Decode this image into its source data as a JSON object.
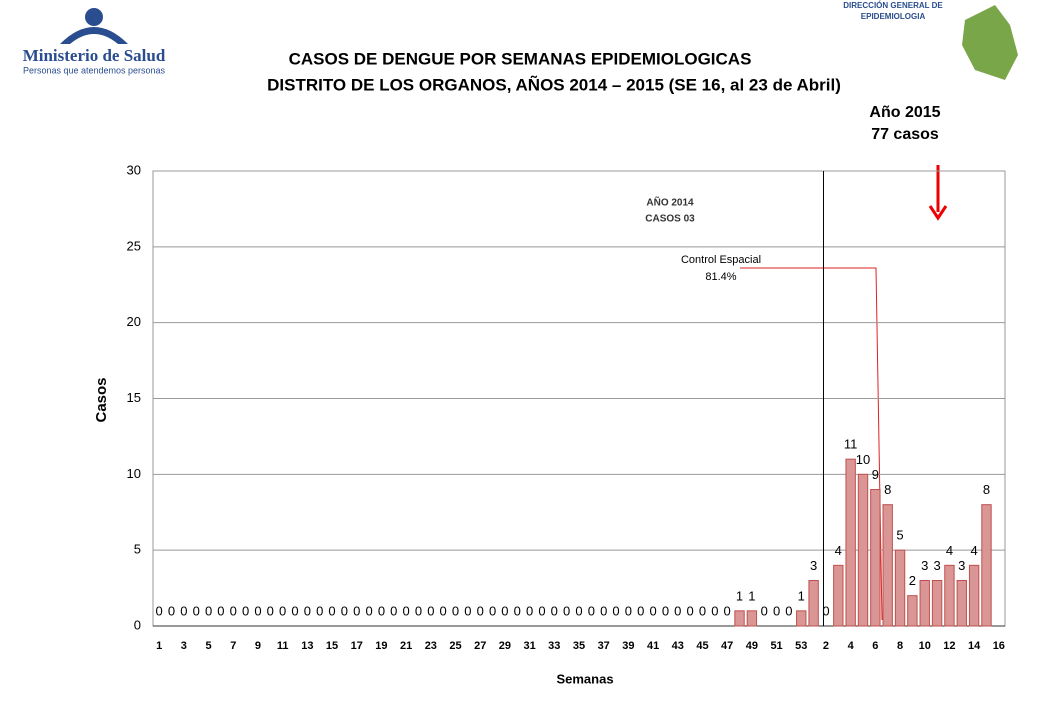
{
  "chart_data": {
    "type": "bar",
    "title": "CASOS DE DENGUE POR SEMANAS EPIDEMIOLOGICAS",
    "subtitle": "DISTRITO DE LOS ORGANOS, AÑOS 2014 – 2015 (SE 16, al 23 de Abril)",
    "x_label": "Semanas",
    "y_label": "Casos",
    "header": {
      "org": "Ministerio de Salud",
      "motto": "Personas que atendemos personas",
      "agency": [
        "DIRECCIÓN GENERAL DE",
        "EPIDEMIOLOGIA"
      ]
    },
    "annotations": {
      "year2014": [
        "AÑO 2014",
        "CASOS 03"
      ],
      "control": [
        "Control Espacial",
        "81.4%"
      ],
      "year2015": [
        "Año 2015",
        "77 casos"
      ]
    },
    "categories": [
      "1",
      null,
      "3",
      null,
      "5",
      null,
      "7",
      null,
      "9",
      null,
      "11",
      null,
      "13",
      null,
      "15",
      null,
      "17",
      null,
      "19",
      null,
      "21",
      null,
      "23",
      null,
      "25",
      null,
      "27",
      null,
      "29",
      null,
      "31",
      null,
      "33",
      null,
      "35",
      null,
      "37",
      null,
      "39",
      null,
      "41",
      null,
      "43",
      null,
      "45",
      null,
      "47",
      null,
      "49",
      null,
      "51",
      null,
      "53",
      null,
      "2",
      null,
      "4",
      null,
      "6",
      null,
      "8",
      null,
      "10",
      null,
      "12",
      null,
      "14",
      null,
      "16"
    ],
    "values": [
      0,
      0,
      0,
      0,
      0,
      0,
      0,
      0,
      0,
      0,
      0,
      0,
      0,
      0,
      0,
      0,
      0,
      0,
      0,
      0,
      0,
      0,
      0,
      0,
      0,
      0,
      0,
      0,
      0,
      0,
      0,
      0,
      0,
      0,
      0,
      0,
      0,
      0,
      0,
      0,
      0,
      0,
      0,
      0,
      0,
      0,
      0,
      1,
      1,
      0,
      0,
      0,
      1,
      3,
      0,
      4,
      11,
      10,
      9,
      8,
      5,
      2,
      3,
      3,
      4,
      3,
      4,
      8,
      null
    ],
    "color": "#d99694",
    "edge_color": "#c0504d",
    "ylim": [
      0,
      30
    ],
    "yticks": [
      0,
      5,
      10,
      15,
      20,
      25,
      30
    ],
    "grid": true
  }
}
